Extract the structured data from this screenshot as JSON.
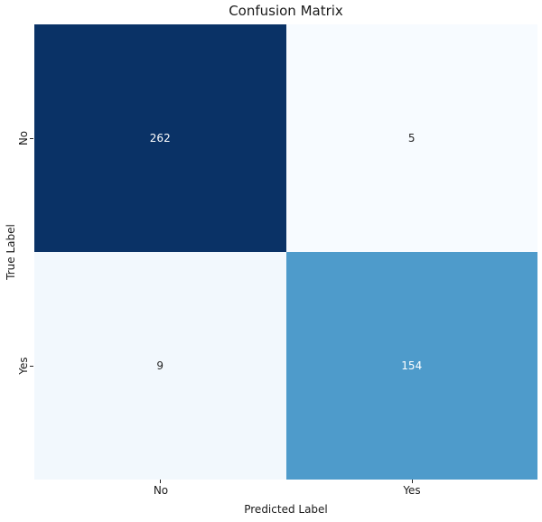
{
  "chart": {
    "title": "Confusion Matrix",
    "xlabel": "Predicted Label",
    "ylabel": "True Label",
    "xticks": {
      "no": "No",
      "yes": "Yes"
    },
    "yticks": {
      "no": "No",
      "yes": "Yes"
    }
  },
  "chart_data": {
    "type": "heatmap",
    "title": "Confusion Matrix",
    "xlabel": "Predicted Label",
    "ylabel": "True Label",
    "x_categories": [
      "No",
      "Yes"
    ],
    "y_categories": [
      "No",
      "Yes"
    ],
    "values": [
      [
        262,
        5
      ],
      [
        9,
        154
      ]
    ],
    "value_range": [
      0,
      262
    ],
    "colormap": "Blues",
    "legend": "none",
    "grid": false,
    "cells": [
      {
        "row": "No",
        "col": "No",
        "value": "262",
        "bg": "#0a3266",
        "fg": "#ffffff"
      },
      {
        "row": "No",
        "col": "Yes",
        "value": "5",
        "bg": "#f7fbff",
        "fg": "#262626"
      },
      {
        "row": "Yes",
        "col": "No",
        "value": "9",
        "bg": "#f2f8fd",
        "fg": "#262626"
      },
      {
        "row": "Yes",
        "col": "Yes",
        "value": "154",
        "bg": "#4e9bcb",
        "fg": "#ffffff"
      }
    ]
  }
}
